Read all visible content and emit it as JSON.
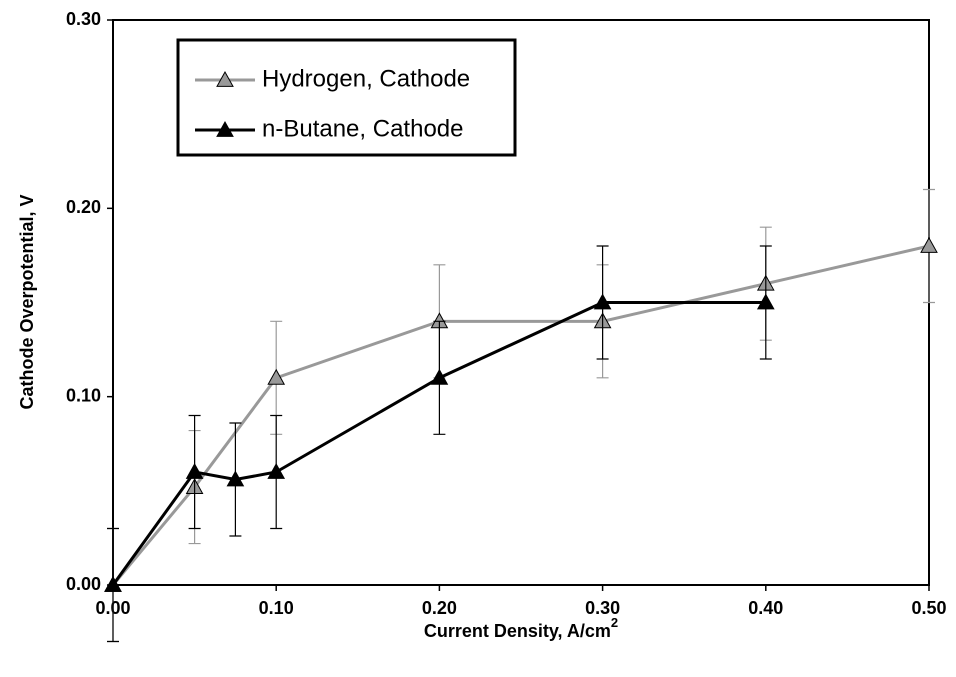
{
  "chart_data": {
    "type": "line",
    "x_label": "Current Density, A/cm",
    "x_label_superscript": "2",
    "y_label": "Cathode Overpotential, V",
    "xlim": [
      0,
      0.5
    ],
    "xticks": [
      {
        "value": 0,
        "label": "0.00"
      },
      {
        "value": 0.1,
        "label": "0.10"
      },
      {
        "value": 0.2,
        "label": "0.20"
      },
      {
        "value": 0.3,
        "label": "0.30"
      },
      {
        "value": 0.4,
        "label": "0.40"
      },
      {
        "value": 0.5,
        "label": "0.50"
      }
    ],
    "ylim": [
      0,
      0.3
    ],
    "yticks": [
      {
        "value": 0,
        "label": "0.00"
      },
      {
        "value": 0.1,
        "label": "0.10"
      },
      {
        "value": 0.2,
        "label": "0.20"
      },
      {
        "value": 0.3,
        "label": "0.30"
      }
    ],
    "legend": "upper left",
    "series": [
      {
        "name": "Hydrogen, Cathode",
        "color": "#999999",
        "x": [
          0,
          0.05,
          0.1,
          0.2,
          0.3,
          0.4,
          0.5
        ],
        "values": [
          0,
          0.052,
          0.11,
          0.14,
          0.14,
          0.16,
          0.18
        ],
        "errors": [
          0.03,
          0.03,
          0.03,
          0.03,
          0.03,
          0.03,
          0.03
        ]
      },
      {
        "name": "n-Butane, Cathode",
        "color": "#000000",
        "x": [
          0,
          0.05,
          0.075,
          0.1,
          0.2,
          0.3,
          0.4
        ],
        "values": [
          0,
          0.06,
          0.056,
          0.06,
          0.11,
          0.15,
          0.15
        ],
        "errors": [
          0.03,
          0.03,
          0.03,
          0.03,
          0.03,
          0.03,
          0.03
        ]
      }
    ]
  }
}
